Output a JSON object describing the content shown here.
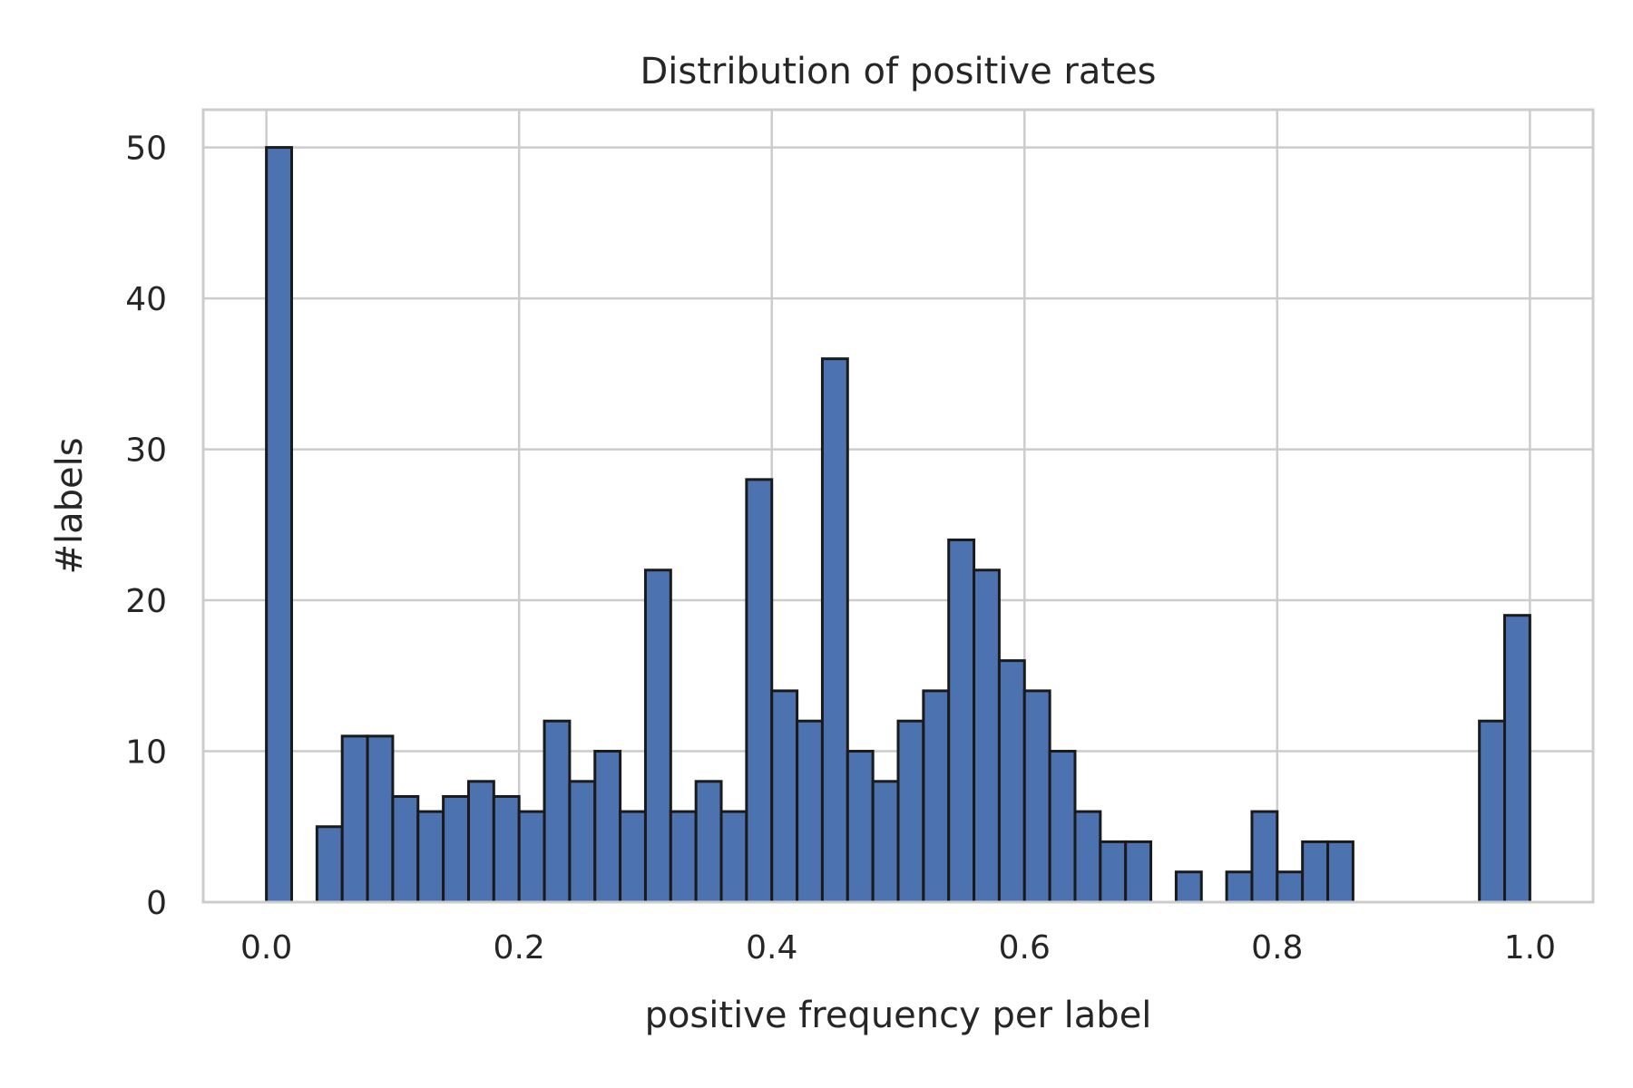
{
  "chart_data": {
    "type": "bar",
    "title": "Distribution of positive rates",
    "xlabel": "positive frequency per label",
    "ylabel": "#labels",
    "xlim": [
      -0.05,
      1.05
    ],
    "ylim": [
      0,
      52.5
    ],
    "xticks": [
      "0.0",
      "0.2",
      "0.4",
      "0.6",
      "0.8",
      "1.0"
    ],
    "yticks": [
      "0",
      "10",
      "20",
      "30",
      "40",
      "50"
    ],
    "grid": true,
    "bar_color": "#4c72b0",
    "edge_color": "#1a1a1a",
    "bin_width": 0.02,
    "bin_starts": [
      0.0,
      0.02,
      0.04,
      0.06,
      0.08,
      0.1,
      0.12,
      0.14,
      0.16,
      0.18,
      0.2,
      0.22,
      0.24,
      0.26,
      0.28,
      0.3,
      0.32,
      0.34,
      0.36,
      0.38,
      0.4,
      0.42,
      0.44,
      0.46,
      0.48,
      0.5,
      0.52,
      0.54,
      0.56,
      0.58,
      0.6,
      0.62,
      0.64,
      0.66,
      0.68,
      0.7,
      0.72,
      0.74,
      0.76,
      0.78,
      0.8,
      0.82,
      0.84,
      0.86,
      0.88,
      0.9,
      0.92,
      0.94,
      0.96,
      0.98
    ],
    "values": [
      50,
      0,
      5,
      11,
      11,
      7,
      6,
      7,
      8,
      7,
      6,
      12,
      8,
      10,
      6,
      22,
      6,
      8,
      6,
      28,
      14,
      12,
      36,
      10,
      8,
      12,
      14,
      24,
      22,
      16,
      14,
      10,
      6,
      4,
      4,
      0,
      2,
      0,
      2,
      6,
      2,
      4,
      4,
      0,
      0,
      0,
      0,
      0,
      12,
      19
    ]
  }
}
